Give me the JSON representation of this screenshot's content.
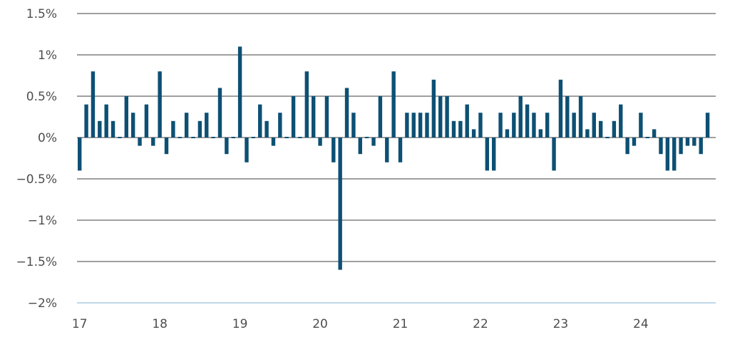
{
  "chart_data": {
    "type": "bar",
    "title": "",
    "xlabel": "",
    "ylabel": "",
    "ylim": [
      -2,
      1.5
    ],
    "y_ticks": [
      {
        "value": 1.5,
        "label": "1.5%"
      },
      {
        "value": 1,
        "label": "1%"
      },
      {
        "value": 0.5,
        "label": "0.5%"
      },
      {
        "value": 0,
        "label": "0%"
      },
      {
        "value": -0.5,
        "label": "−0.5%"
      },
      {
        "value": -1,
        "label": "−1%"
      },
      {
        "value": -1.5,
        "label": "−1.5%"
      },
      {
        "value": -2,
        "label": "−2%"
      }
    ],
    "x_ticks": [
      "17",
      "18",
      "19",
      "20",
      "21",
      "22",
      "23",
      "24"
    ],
    "grid": true,
    "legend": "none",
    "color": "#0d5073",
    "values": [
      -0.4,
      0.4,
      0.8,
      0.2,
      0.4,
      0.2,
      0.0,
      0.5,
      0.3,
      -0.1,
      0.4,
      -0.1,
      0.8,
      -0.2,
      0.2,
      0.0,
      0.3,
      0.0,
      0.2,
      0.3,
      0.0,
      0.6,
      -0.2,
      0.0,
      1.1,
      -0.3,
      0.0,
      0.4,
      0.2,
      -0.1,
      0.3,
      0.0,
      0.5,
      0.0,
      0.8,
      0.5,
      -0.1,
      0.5,
      -0.3,
      -1.6,
      0.6,
      0.3,
      -0.2,
      0.0,
      -0.1,
      0.5,
      -0.3,
      0.8,
      -0.3,
      0.3,
      0.3,
      0.3,
      0.3,
      0.7,
      0.5,
      0.5,
      0.2,
      0.2,
      0.4,
      0.1,
      0.3,
      -0.4,
      -0.4,
      0.3,
      0.1,
      0.3,
      0.5,
      0.4,
      0.3,
      0.1,
      0.3,
      -0.4,
      0.7,
      0.5,
      0.3,
      0.5,
      0.1,
      0.3,
      0.2,
      0.0,
      0.2,
      0.4,
      -0.2,
      -0.1,
      0.3,
      0.0,
      0.1,
      -0.2,
      -0.4,
      -0.4,
      -0.2,
      -0.1,
      -0.1,
      -0.2,
      0.3
    ]
  }
}
